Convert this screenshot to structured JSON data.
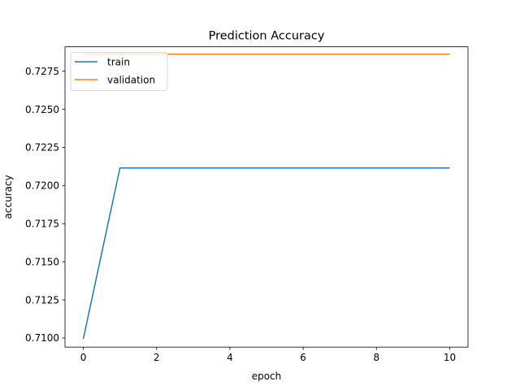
{
  "chart_data": {
    "type": "line",
    "title": "Prediction Accuracy",
    "xlabel": "epoch",
    "ylabel": "accuracy",
    "x": [
      0,
      1,
      2,
      3,
      4,
      5,
      6,
      7,
      8,
      9,
      10
    ],
    "xlim": [
      -0.5,
      10.5
    ],
    "ylim": [
      0.7094,
      0.7291
    ],
    "xticks": [
      0,
      2,
      4,
      6,
      8,
      10
    ],
    "yticks": [
      0.71,
      0.7125,
      0.715,
      0.7175,
      0.72,
      0.7225,
      0.725,
      0.7275
    ],
    "ytick_format_decimals": 4,
    "grid": false,
    "legend_position": "upper-left",
    "series": [
      {
        "name": "train",
        "color": "#1f77b4",
        "values": [
          0.70995,
          0.72115,
          0.72115,
          0.72115,
          0.72115,
          0.72115,
          0.72115,
          0.72115,
          0.72115,
          0.72115,
          0.72115
        ]
      },
      {
        "name": "validation",
        "color": "#ff7f0e",
        "values": [
          0.72862,
          0.72862,
          0.72862,
          0.72862,
          0.72862,
          0.72862,
          0.72862,
          0.72862,
          0.72862,
          0.72862,
          0.72862
        ]
      }
    ]
  }
}
